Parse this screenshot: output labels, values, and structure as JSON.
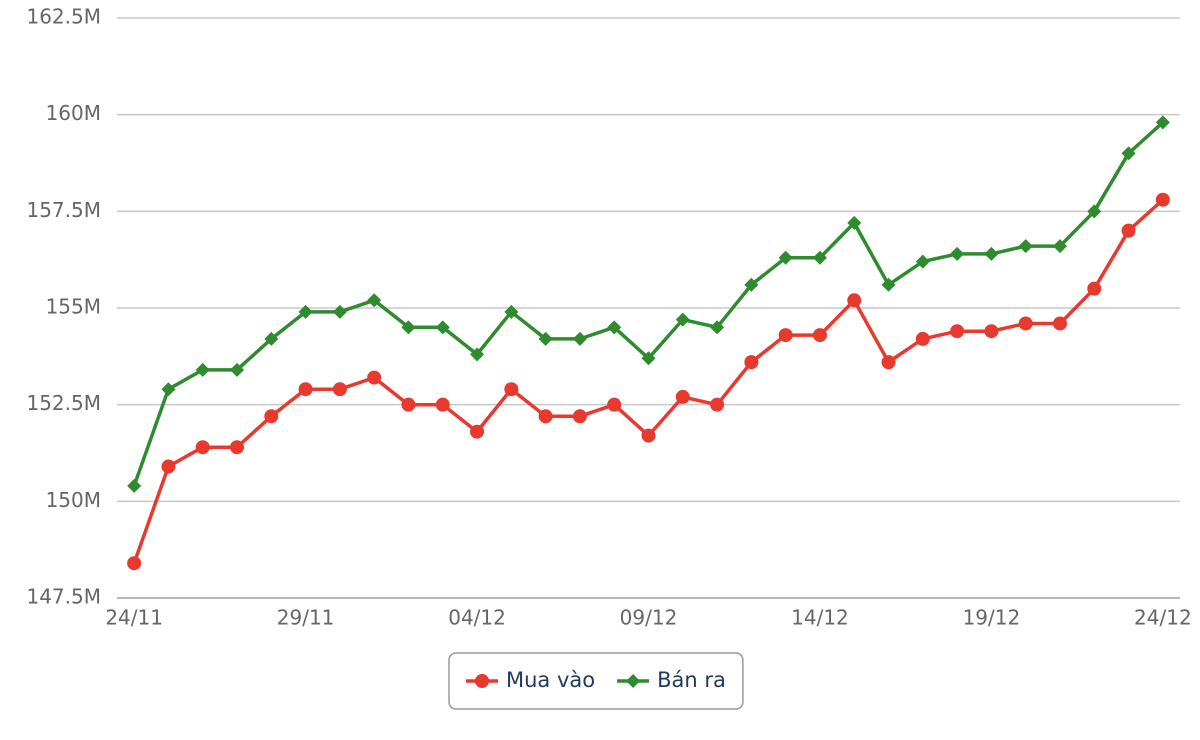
{
  "chart_data": {
    "type": "line",
    "categories": [
      "24/11",
      null,
      null,
      null,
      null,
      "29/11",
      null,
      null,
      null,
      null,
      "04/12",
      null,
      null,
      null,
      null,
      "09/12",
      null,
      null,
      null,
      null,
      "14/12",
      null,
      null,
      null,
      null,
      "19/12",
      null,
      null,
      null,
      null,
      "24/12"
    ],
    "series": [
      {
        "name": "Mua vào",
        "color": "#e8392f",
        "marker": "circle",
        "values": [
          148.4,
          150.9,
          151.4,
          151.4,
          152.2,
          152.9,
          152.9,
          153.2,
          152.5,
          152.5,
          151.8,
          152.9,
          152.2,
          152.2,
          152.5,
          151.7,
          152.7,
          152.5,
          153.6,
          154.3,
          154.3,
          155.2,
          153.6,
          154.2,
          154.4,
          154.4,
          154.6,
          154.6,
          155.5,
          157.0,
          157.8
        ]
      },
      {
        "name": "Bán ra",
        "color": "#2e8b2e",
        "marker": "diamond",
        "values": [
          150.4,
          152.9,
          153.4,
          153.4,
          154.2,
          154.9,
          154.9,
          155.2,
          154.5,
          154.5,
          153.8,
          154.9,
          154.2,
          154.2,
          154.5,
          153.7,
          154.7,
          154.5,
          155.6,
          156.3,
          156.3,
          157.2,
          155.6,
          156.2,
          156.4,
          156.4,
          156.6,
          156.6,
          157.5,
          159.0,
          159.8
        ]
      }
    ],
    "ylim": [
      147.5,
      162.5
    ],
    "yticks": [
      {
        "value": 147.5,
        "label": "147.5M"
      },
      {
        "value": 150,
        "label": "150M"
      },
      {
        "value": 152.5,
        "label": "152.5M"
      },
      {
        "value": 155,
        "label": "155M"
      },
      {
        "value": 157.5,
        "label": "157.5M"
      },
      {
        "value": 160,
        "label": "160M"
      },
      {
        "value": 162.5,
        "label": "162.5M"
      }
    ],
    "grid": true,
    "legend": "bottom"
  }
}
